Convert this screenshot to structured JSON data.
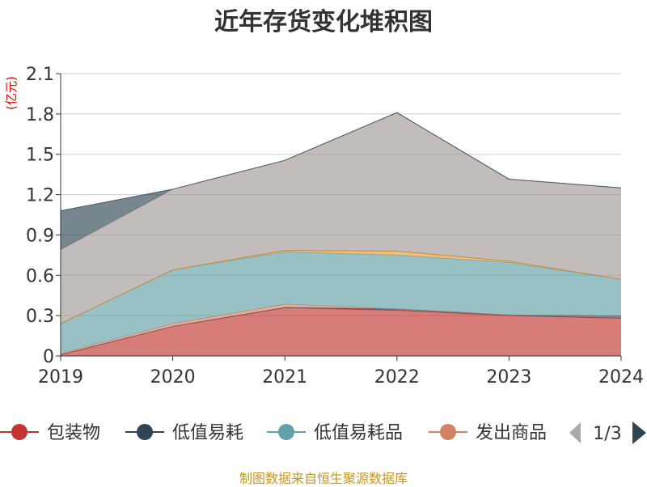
{
  "chart_data": {
    "type": "area",
    "stacked": true,
    "title": "近年存货变化堆积图",
    "ylabel": "(亿元)",
    "ylim": [
      0,
      2.1
    ],
    "yticks": [
      0,
      0.3,
      0.6,
      0.9,
      1.2,
      1.5,
      1.8,
      2.1
    ],
    "ytick_labels": [
      "0",
      "0.3",
      "0.6",
      "0.9",
      "1.2",
      "1.5",
      "1.8",
      "2.1"
    ],
    "x": [
      "2019",
      "2020",
      "2021",
      "2022",
      "2023",
      "2024"
    ],
    "grid": true,
    "series": [
      {
        "name": "包装物",
        "color": "#c23531",
        "values": [
          0.01,
          0.22,
          0.36,
          0.34,
          0.3,
          0.28
        ]
      },
      {
        "name": "低值易耗",
        "color": "#2f4554",
        "values": [
          0.0,
          0.0,
          0.0,
          0.01,
          0.005,
          0.02
        ]
      },
      {
        "name": "",
        "color": "#d48265",
        "values": [
          0.01,
          0.02,
          0.025,
          0.0,
          0.0,
          0.0
        ]
      },
      {
        "name": "低值易耗品",
        "color": "#61a0a8",
        "values": [
          0.22,
          0.4,
          0.39,
          0.4,
          0.39,
          0.27
        ]
      },
      {
        "name": "",
        "color": "#e69d37",
        "values": [
          0.0,
          0.0,
          0.01,
          0.03,
          0.01,
          0.0
        ]
      },
      {
        "name": "",
        "color": "#ca8622",
        "values": [
          0.0,
          0.0,
          0.0,
          0.0,
          0.0,
          0.0
        ]
      },
      {
        "name": "",
        "color": "#a19897",
        "values": [
          0.55,
          0.6,
          0.67,
          1.03,
          0.61,
          0.68
        ]
      },
      {
        "name": "",
        "color": "#2f4554",
        "values": [
          0.29,
          0.0,
          0.0,
          0.0,
          0.0,
          0.0
        ]
      }
    ],
    "legend": {
      "position": "bottom",
      "items": [
        {
          "label": "包装物",
          "color": "#c23531"
        },
        {
          "label": "低值易耗",
          "color": "#2f4554"
        },
        {
          "label": "低值易耗品",
          "color": "#61a0a8"
        },
        {
          "label": "发出商品",
          "color": "#d48265"
        }
      ],
      "page": "1/3"
    }
  },
  "footer": {
    "source": "制图数据来自恒生聚源数据库"
  }
}
